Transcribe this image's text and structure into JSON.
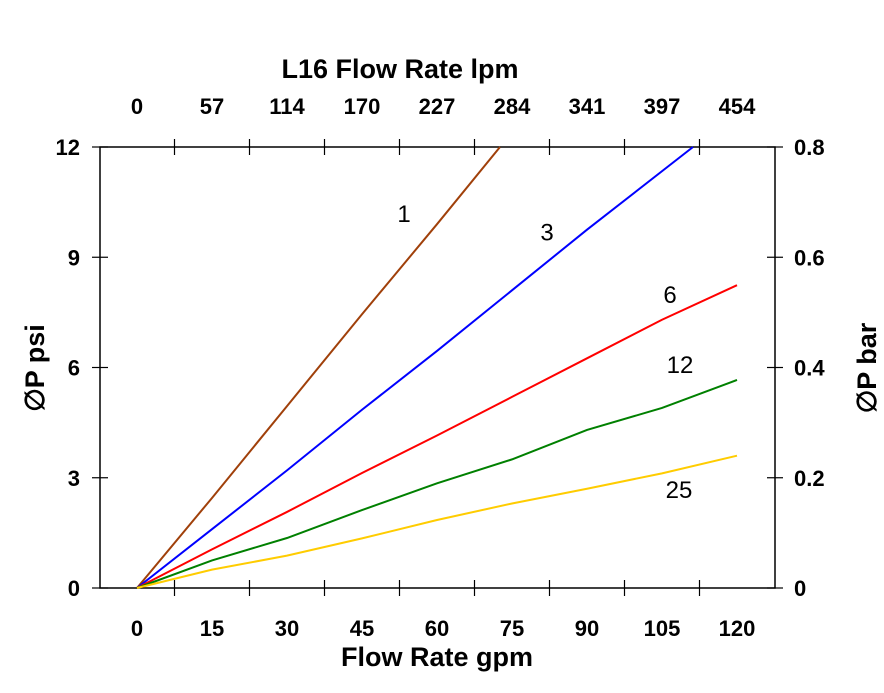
{
  "chart_data": {
    "type": "line",
    "title": "L16  Flow Rate lpm",
    "xlabel": "Flow Rate gpm",
    "ylabel": "∅P psi",
    "y2label": "∅P bar",
    "xlim": [
      -5,
      128
    ],
    "ylim": [
      0,
      12
    ],
    "y2lim": [
      0,
      0.8
    ],
    "grid": false,
    "x_ticks": [
      "0",
      "15",
      "30",
      "45",
      "60",
      "75",
      "90",
      "105",
      "120"
    ],
    "x_tick_values": [
      0,
      15,
      30,
      45,
      60,
      75,
      90,
      105,
      120
    ],
    "x2_ticks": [
      "0",
      "57",
      "114",
      "170",
      "227",
      "284",
      "341",
      "397",
      "454"
    ],
    "y_ticks": [
      "0",
      "3",
      "6",
      "9",
      "12"
    ],
    "y_tick_values": [
      0,
      3,
      6,
      9,
      12
    ],
    "y2_ticks": [
      "0",
      "0.2",
      "0.4",
      "0.6",
      "0.8"
    ],
    "series": [
      {
        "name": "1",
        "color": "#a0400a",
        "x": [
          0,
          15,
          30,
          45,
          60,
          72.6
        ],
        "y": [
          0,
          2.45,
          4.95,
          7.45,
          9.9,
          12
        ],
        "label_at": [
          53.4,
          10.2
        ]
      },
      {
        "name": "3",
        "color": "#0000ff",
        "x": [
          0,
          15,
          30,
          45,
          60,
          75,
          90,
          111.2
        ],
        "y": [
          0,
          1.6,
          3.2,
          4.85,
          6.45,
          8.1,
          9.75,
          12
        ],
        "label_at": [
          82,
          9.7
        ]
      },
      {
        "name": "6",
        "color": "#ff0000",
        "x": [
          0,
          15,
          30,
          45,
          60,
          75,
          90,
          105,
          120
        ],
        "y": [
          0,
          1.05,
          2.07,
          3.13,
          4.15,
          5.2,
          6.25,
          7.3,
          8.24
        ],
        "label_at": [
          106.6,
          8.0
        ]
      },
      {
        "name": "12",
        "color": "#008000",
        "x": [
          0,
          15,
          30,
          45,
          60,
          75,
          90,
          105,
          120
        ],
        "y": [
          0,
          0.75,
          1.36,
          2.12,
          2.85,
          3.5,
          4.3,
          4.9,
          5.66
        ],
        "label_at": [
          108.6,
          6.1
        ]
      },
      {
        "name": "25",
        "color": "#ffcc00",
        "x": [
          0,
          15,
          30,
          45,
          60,
          75,
          90,
          105,
          120
        ],
        "y": [
          0,
          0.5,
          0.88,
          1.35,
          1.85,
          2.3,
          2.7,
          3.12,
          3.6
        ],
        "label_at": [
          108.4,
          2.7
        ]
      }
    ]
  }
}
